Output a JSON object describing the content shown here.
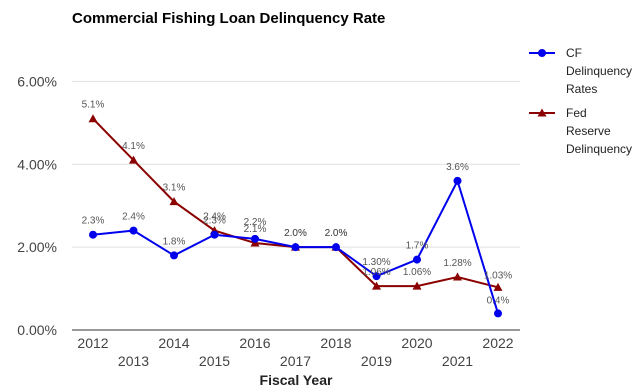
{
  "chart_data": {
    "type": "line",
    "title": "Commercial Fishing Loan Delinquency Rate",
    "xlabel": "Fiscal Year",
    "ylabel": "",
    "categories": [
      "2012",
      "2013",
      "2014",
      "2015",
      "2016",
      "2017",
      "2018",
      "2019",
      "2020",
      "2021",
      "2022"
    ],
    "ylim": [
      0,
      7
    ],
    "yticks": [
      "0.00%",
      "2.00%",
      "4.00%",
      "6.00%"
    ],
    "ytick_values": [
      0,
      2,
      4,
      6
    ],
    "grid": true,
    "legend_position": "right",
    "series": [
      {
        "name": "CF Delinquency Rates",
        "legend_lines": [
          "CF",
          "Delinquency",
          "Rates"
        ],
        "color": "#0000ee",
        "marker": "circle",
        "values": [
          2.3,
          2.4,
          1.8,
          2.3,
          2.2,
          2.0,
          2.0,
          1.3,
          1.7,
          3.6,
          0.4
        ],
        "labels": [
          "2.3%",
          "2.4%",
          "1.8%",
          "2.3%",
          "2.2%",
          "2.0%",
          "2.0%",
          "1.30%",
          "1.7%",
          "3.6%",
          "0.4%"
        ]
      },
      {
        "name": "Fed Reserve Delinquency",
        "legend_lines": [
          "Fed",
          "Reserve",
          "Delinquency"
        ],
        "color": "#8b0000",
        "marker": "triangle",
        "values": [
          5.1,
          4.1,
          3.1,
          2.4,
          2.1,
          2.0,
          2.0,
          1.06,
          1.06,
          1.28,
          1.03
        ],
        "labels": [
          "5.1%",
          "4.1%",
          "3.1%",
          "2.4%",
          "2.1%",
          "2.0%",
          "2.0%",
          "1.06%",
          "1.06%",
          "1.28%",
          "1.03%"
        ]
      }
    ]
  }
}
